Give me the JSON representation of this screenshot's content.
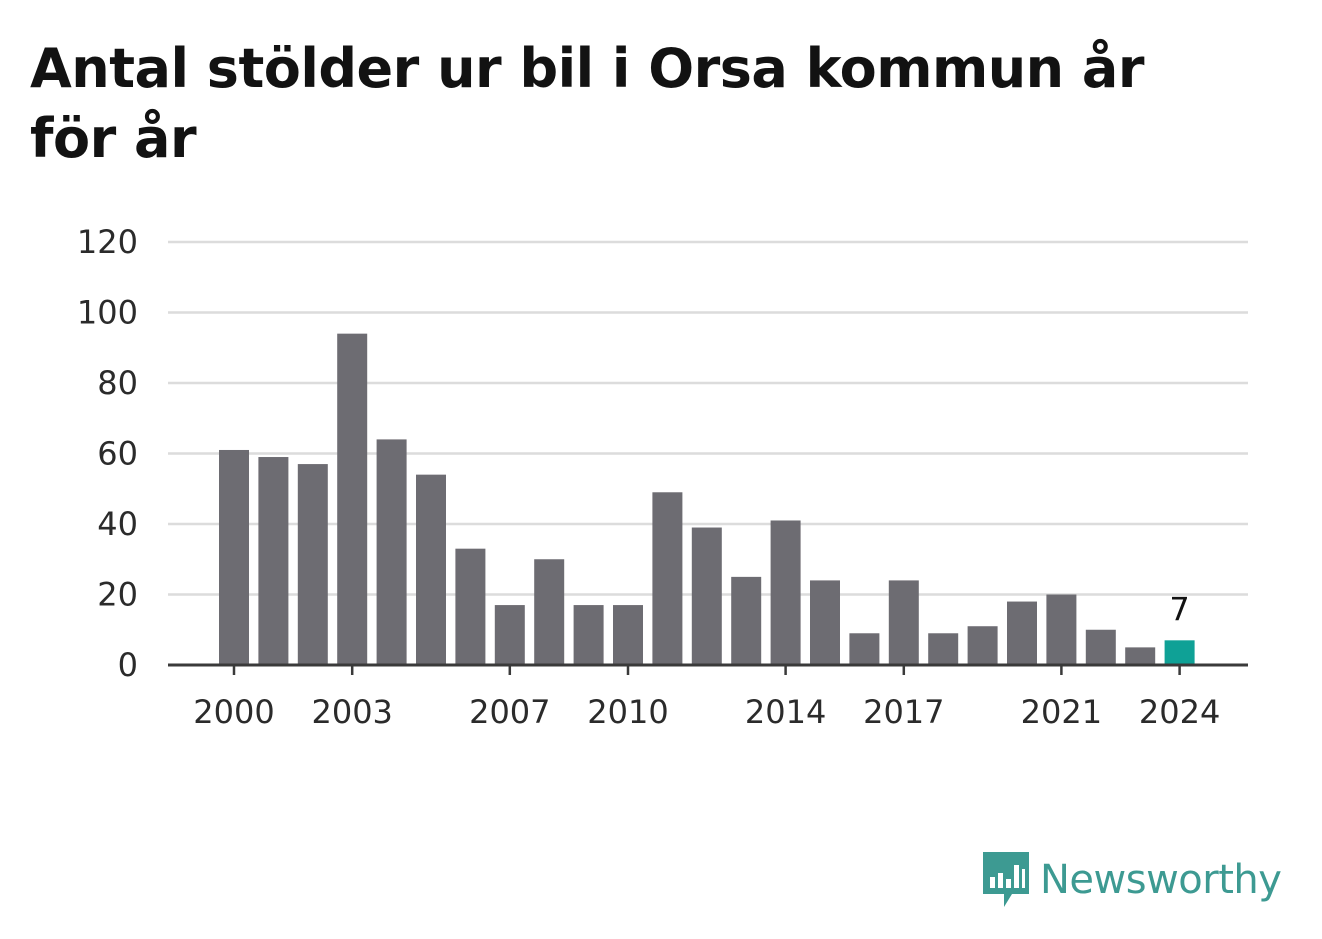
{
  "title": "Antal stölder ur bil i Orsa kommun år för år",
  "brand": {
    "name": "Newsworthy",
    "icon": "newsworthy-logo-icon",
    "color": "#3d9a92"
  },
  "colors": {
    "bar": "#6d6c72",
    "highlight": "#0fa196"
  },
  "chart_data": {
    "type": "bar",
    "title": "Antal stölder ur bil i Orsa kommun år för år",
    "xlabel": "",
    "ylabel": "",
    "categories": [
      "2000",
      "2001",
      "2002",
      "2003",
      "2004",
      "2005",
      "2006",
      "2007",
      "2008",
      "2009",
      "2010",
      "2011",
      "2012",
      "2013",
      "2014",
      "2015",
      "2016",
      "2017",
      "2018",
      "2019",
      "2020",
      "2021",
      "2022",
      "2023",
      "2024"
    ],
    "values": [
      61,
      59,
      57,
      94,
      64,
      54,
      33,
      17,
      30,
      17,
      17,
      49,
      39,
      25,
      41,
      24,
      9,
      24,
      9,
      11,
      18,
      20,
      10,
      5,
      7
    ],
    "ylim": [
      0,
      120
    ],
    "yticks": [
      0,
      20,
      40,
      60,
      80,
      100,
      120
    ],
    "xtick_labels": [
      "2000",
      "2003",
      "2007",
      "2010",
      "2014",
      "2017",
      "2021",
      "2024"
    ],
    "highlight": {
      "category": "2024",
      "label": "7"
    },
    "grid": true,
    "legend": "none"
  }
}
